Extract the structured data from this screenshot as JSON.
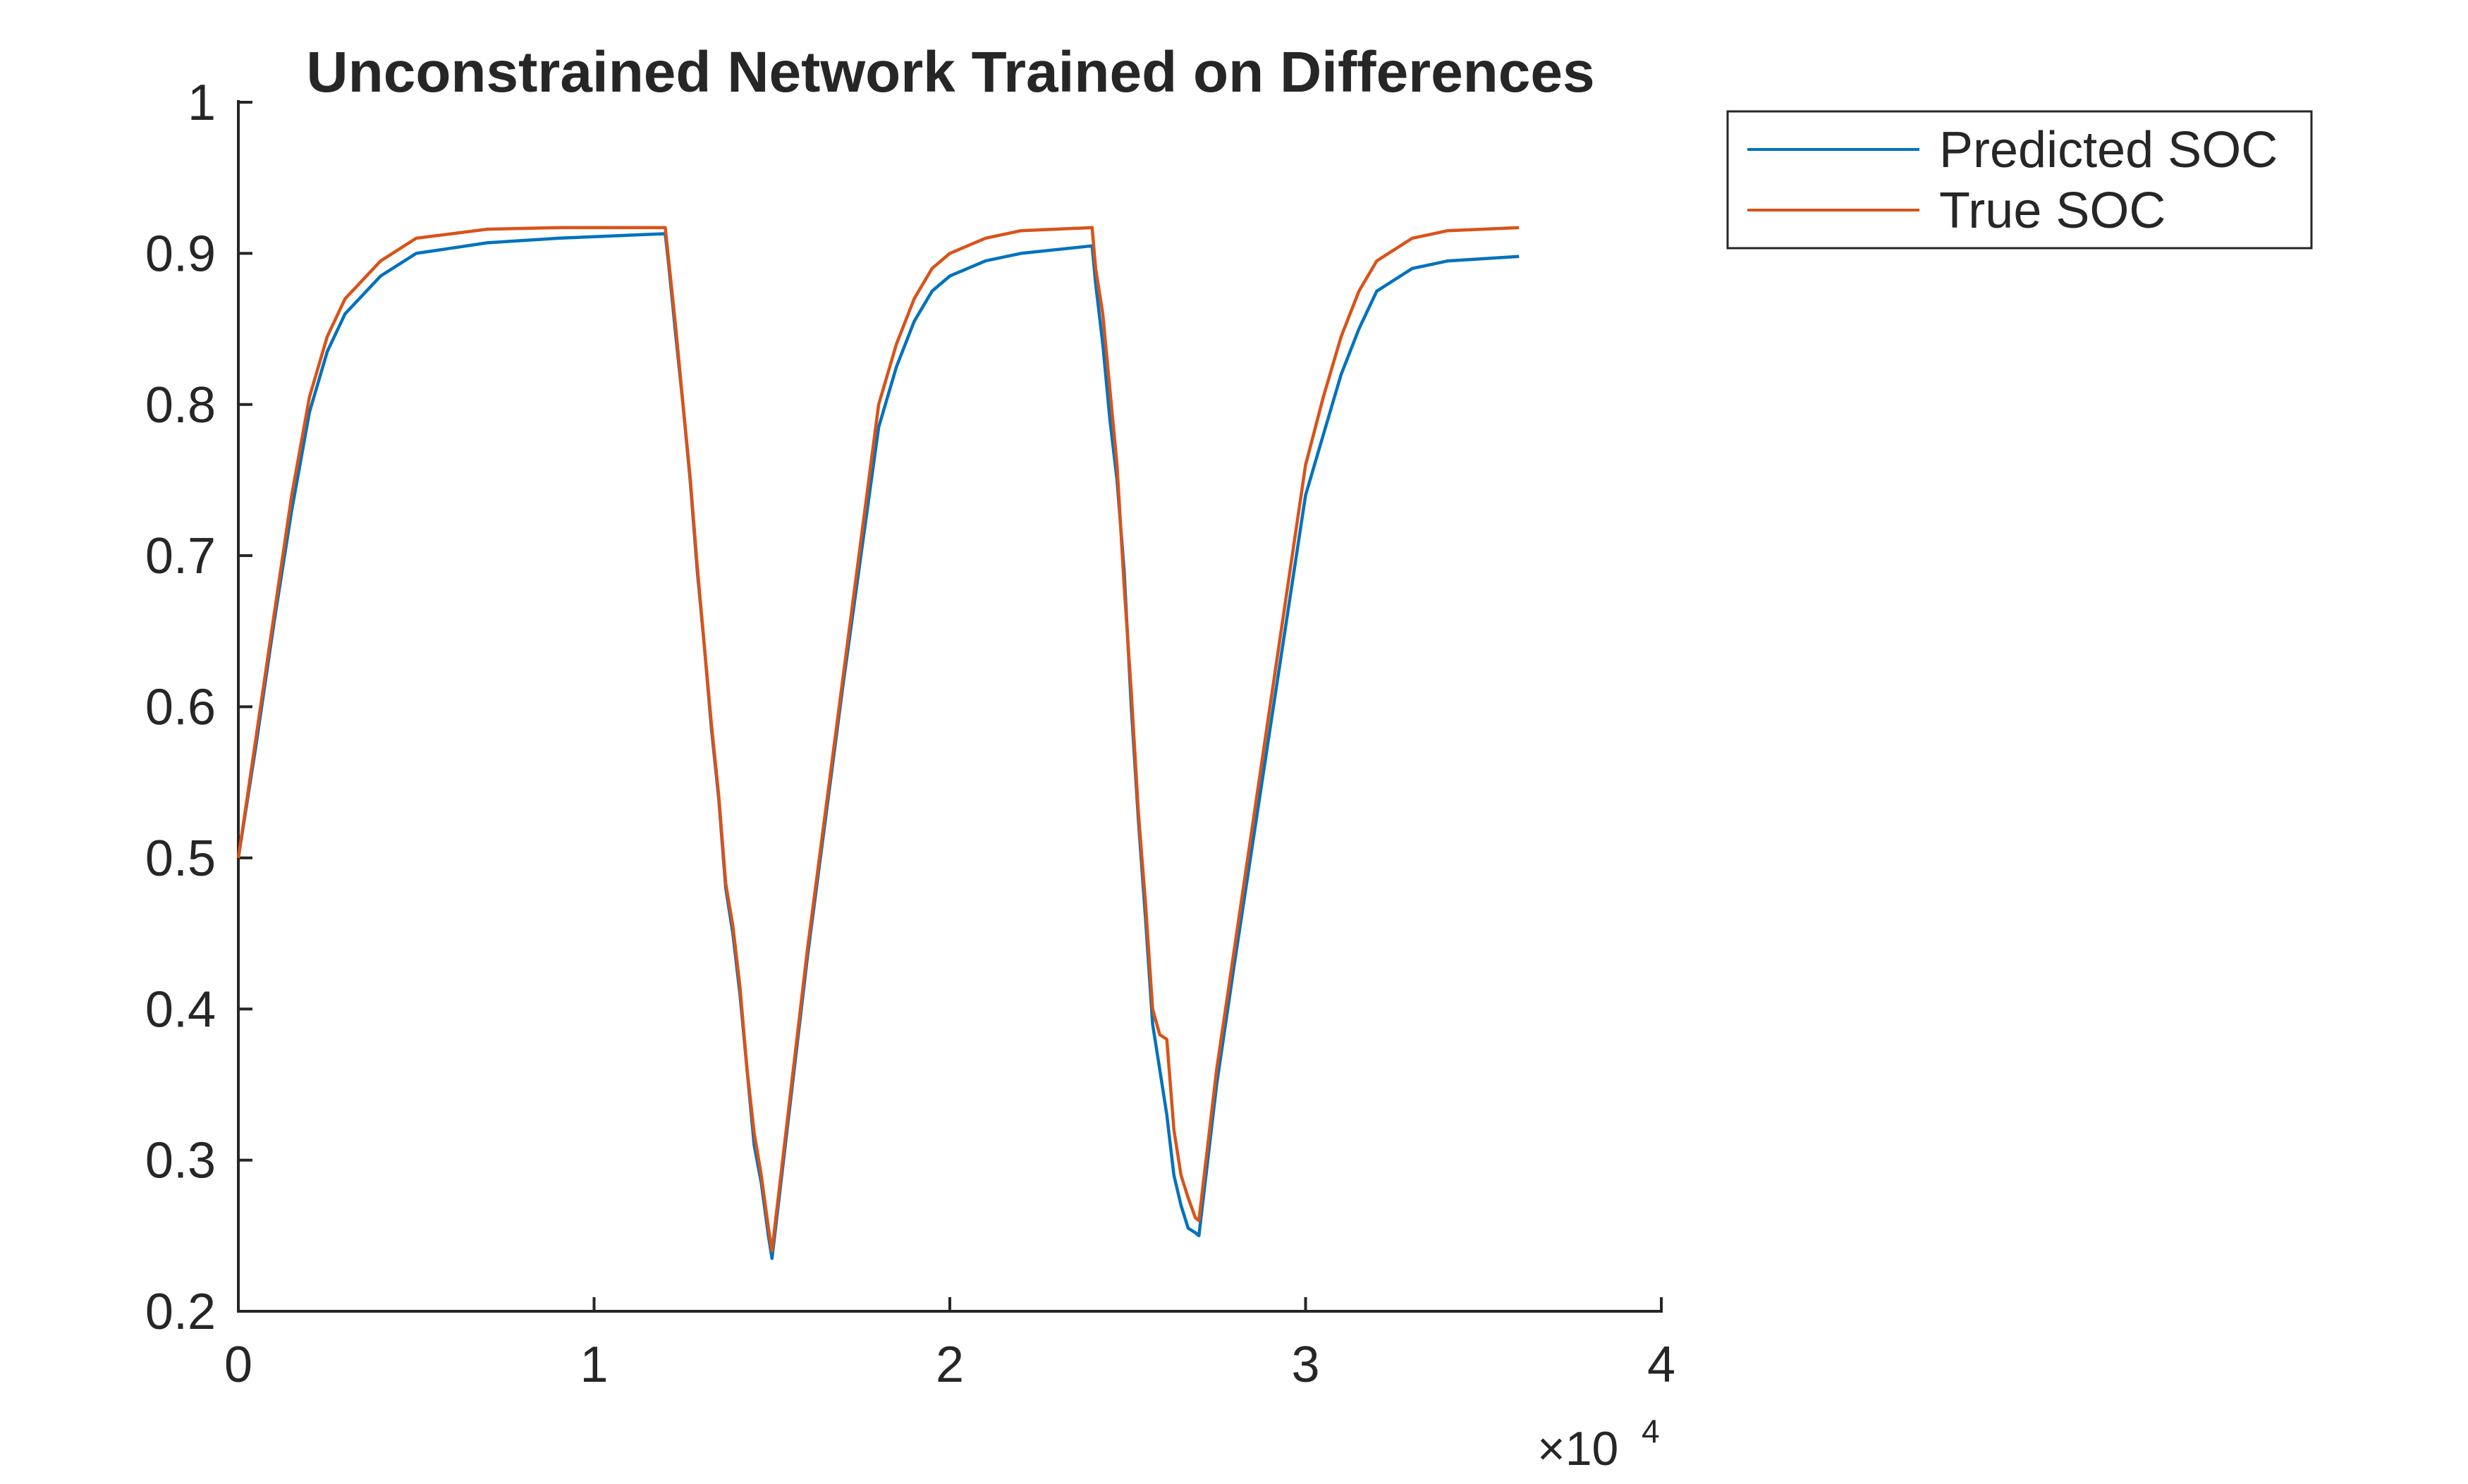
{
  "chart_data": {
    "type": "line",
    "title": "Unconstrained Network Trained on Differences",
    "xlabel": "",
    "ylabel": "",
    "xlim": [
      0,
      40000
    ],
    "ylim": [
      0.2,
      1
    ],
    "x_exponent_label": "×10",
    "x_exponent_power": "4",
    "xtick_labels": [
      "0",
      "1",
      "2",
      "3",
      "4"
    ],
    "xtick_values": [
      0,
      10000,
      20000,
      30000,
      40000
    ],
    "ytick_labels": [
      "0.2",
      "0.3",
      "0.4",
      "0.5",
      "0.6",
      "0.7",
      "0.8",
      "0.9",
      "1"
    ],
    "ytick_values": [
      0.2,
      0.3,
      0.4,
      0.5,
      0.6,
      0.7,
      0.8,
      0.9,
      1.0
    ],
    "grid": false,
    "legend_position": "outside-top-right",
    "series": [
      {
        "name": "Predicted SOC",
        "color": "#0072BD",
        "x": [
          0,
          500,
          1000,
          1500,
          2000,
          2500,
          3000,
          4000,
          5000,
          7000,
          9000,
          12000,
          12100,
          12300,
          12500,
          12700,
          12900,
          13100,
          13300,
          13500,
          13700,
          13900,
          14100,
          14300,
          14500,
          14700,
          14900,
          15000,
          15500,
          16000,
          17000,
          18000,
          18500,
          19000,
          19500,
          20000,
          21000,
          22000,
          24000,
          24100,
          24300,
          24500,
          24700,
          24900,
          25100,
          25300,
          25500,
          25700,
          25900,
          26100,
          26300,
          26500,
          26700,
          26900,
          27000,
          27500,
          28000,
          29000,
          30000,
          30500,
          31000,
          31500,
          32000,
          33000,
          34000,
          36000
        ],
        "y": [
          0.5,
          0.575,
          0.655,
          0.73,
          0.795,
          0.835,
          0.86,
          0.885,
          0.9,
          0.907,
          0.91,
          0.913,
          0.892,
          0.845,
          0.8,
          0.75,
          0.69,
          0.64,
          0.585,
          0.54,
          0.48,
          0.45,
          0.41,
          0.36,
          0.31,
          0.285,
          0.25,
          0.235,
          0.335,
          0.435,
          0.615,
          0.785,
          0.825,
          0.855,
          0.875,
          0.885,
          0.895,
          0.9,
          0.905,
          0.88,
          0.84,
          0.79,
          0.75,
          0.69,
          0.6,
          0.525,
          0.46,
          0.39,
          0.36,
          0.33,
          0.29,
          0.27,
          0.255,
          0.252,
          0.25,
          0.35,
          0.43,
          0.585,
          0.74,
          0.78,
          0.82,
          0.85,
          0.875,
          0.89,
          0.895,
          0.898
        ]
      },
      {
        "name": "True SOC",
        "color": "#D95319",
        "x": [
          0,
          500,
          1000,
          1500,
          2000,
          2500,
          3000,
          4000,
          5000,
          7000,
          9000,
          12000,
          12100,
          12300,
          12500,
          12700,
          12900,
          13100,
          13300,
          13500,
          13700,
          13900,
          14100,
          14300,
          14500,
          14700,
          14900,
          15000,
          15500,
          16000,
          17000,
          18000,
          18500,
          19000,
          19500,
          20000,
          21000,
          22000,
          24000,
          24100,
          24300,
          24500,
          24700,
          24900,
          25100,
          25300,
          25500,
          25700,
          25900,
          26100,
          26300,
          26500,
          26700,
          26900,
          27000,
          27500,
          28000,
          29000,
          30000,
          30500,
          31000,
          31500,
          32000,
          33000,
          34000,
          36000
        ],
        "y": [
          0.5,
          0.58,
          0.66,
          0.74,
          0.805,
          0.845,
          0.87,
          0.895,
          0.91,
          0.916,
          0.917,
          0.917,
          0.895,
          0.85,
          0.8,
          0.752,
          0.693,
          0.64,
          0.588,
          0.542,
          0.483,
          0.455,
          0.415,
          0.36,
          0.318,
          0.29,
          0.255,
          0.24,
          0.34,
          0.44,
          0.62,
          0.8,
          0.84,
          0.87,
          0.89,
          0.9,
          0.91,
          0.915,
          0.917,
          0.89,
          0.86,
          0.81,
          0.76,
          0.68,
          0.61,
          0.53,
          0.47,
          0.4,
          0.383,
          0.38,
          0.32,
          0.29,
          0.275,
          0.262,
          0.26,
          0.36,
          0.44,
          0.6,
          0.76,
          0.805,
          0.845,
          0.875,
          0.895,
          0.91,
          0.915,
          0.917
        ]
      }
    ]
  }
}
